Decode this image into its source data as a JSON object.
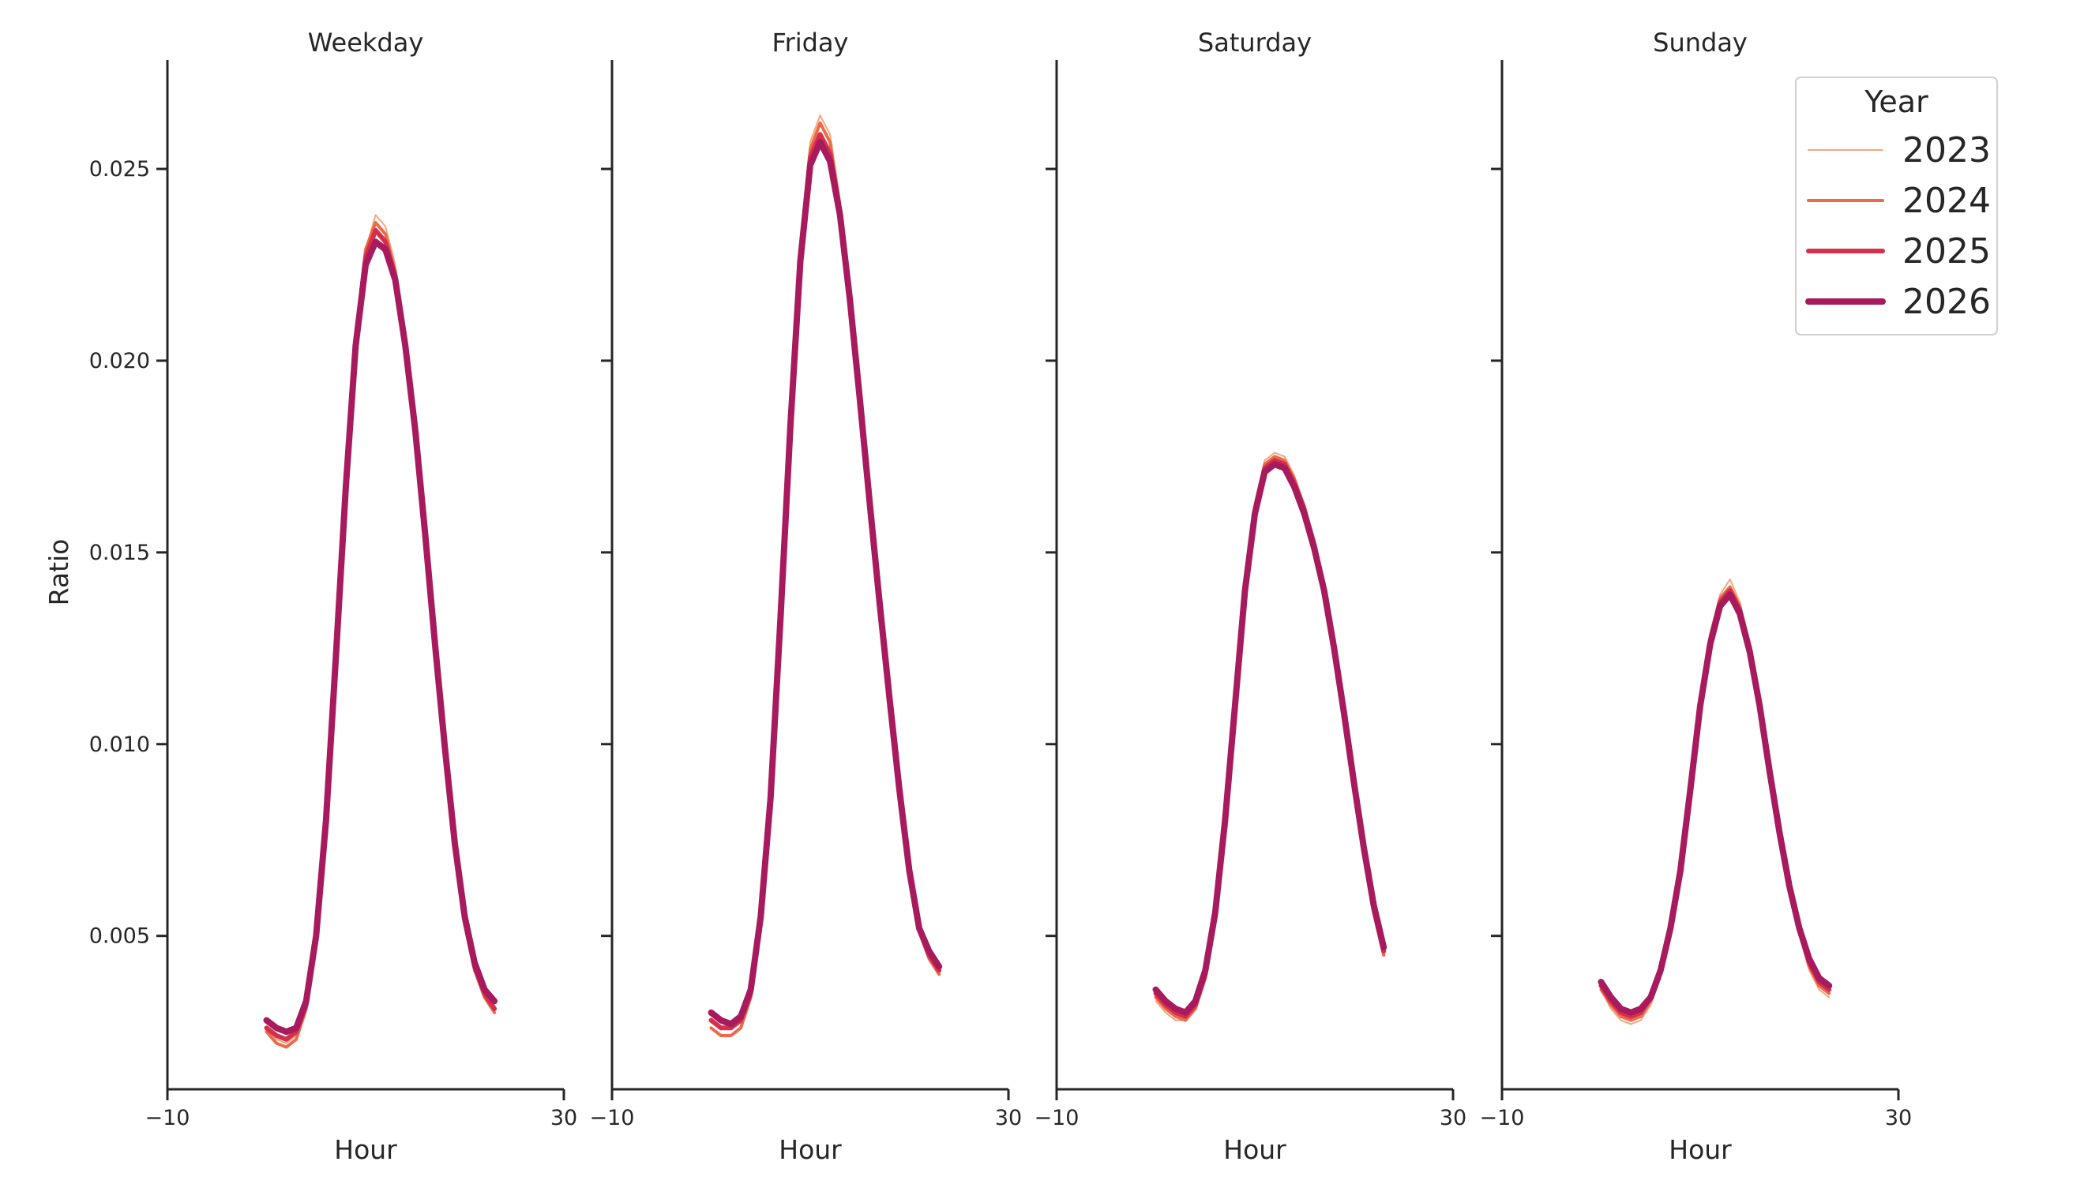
{
  "chart_data": {
    "type": "line",
    "ylabel": "Ratio",
    "xlabel": "Hour",
    "xlim": [
      -10,
      30
    ],
    "ylim": [
      0.001,
      0.0278
    ],
    "x_ticks": [
      -10,
      30
    ],
    "x_tick_labels": [
      "−10",
      "30"
    ],
    "y_ticks": [
      0.005,
      0.01,
      0.015,
      0.02,
      0.025
    ],
    "y_tick_labels": [
      "0.005",
      "0.010",
      "0.015",
      "0.020",
      "0.025"
    ],
    "grid": false,
    "legend": {
      "title": "Year",
      "placement": "top-right",
      "entries": [
        "2023",
        "2024",
        "2025",
        "2026"
      ]
    },
    "series_styles": [
      {
        "name": "2023",
        "color": "#f5a77c",
        "width": 2
      },
      {
        "name": "2024",
        "color": "#ec6a4a",
        "width": 4
      },
      {
        "name": "2025",
        "color": "#d4304b",
        "width": 6
      },
      {
        "name": "2026",
        "color": "#a71a5d",
        "width": 8
      }
    ],
    "x": [
      0,
      1,
      2,
      3,
      4,
      5,
      6,
      7,
      8,
      9,
      10,
      11,
      12,
      13,
      14,
      15,
      16,
      17,
      18,
      19,
      20,
      21,
      22,
      23
    ],
    "panels": [
      {
        "title": "Weekday",
        "series": [
          {
            "name": "2023",
            "values": [
              0.0026,
              0.0023,
              0.0022,
              0.0024,
              0.0032,
              0.005,
              0.0081,
              0.0125,
              0.017,
              0.0207,
              0.0229,
              0.0238,
              0.0235,
              0.0225,
              0.0207,
              0.0183,
              0.0155,
              0.0125,
              0.0097,
              0.0072,
              0.0053,
              0.0041,
              0.0034,
              0.003
            ]
          },
          {
            "name": "2024",
            "values": [
              0.0025,
              0.0022,
              0.0021,
              0.0023,
              0.0031,
              0.0049,
              0.008,
              0.0124,
              0.0169,
              0.0206,
              0.0229,
              0.0236,
              0.0233,
              0.0223,
              0.0206,
              0.0182,
              0.0154,
              0.0124,
              0.0097,
              0.0072,
              0.0053,
              0.0041,
              0.0034,
              0.003
            ]
          },
          {
            "name": "2025",
            "values": [
              0.0026,
              0.0024,
              0.0023,
              0.0025,
              0.0032,
              0.005,
              0.008,
              0.0124,
              0.0168,
              0.0205,
              0.0227,
              0.0234,
              0.0231,
              0.0222,
              0.0205,
              0.0182,
              0.0155,
              0.0125,
              0.0098,
              0.0073,
              0.0054,
              0.0042,
              0.0035,
              0.0031
            ]
          },
          {
            "name": "2026",
            "values": [
              0.0028,
              0.0026,
              0.0025,
              0.0026,
              0.0033,
              0.005,
              0.008,
              0.0123,
              0.0167,
              0.0204,
              0.0225,
              0.0231,
              0.0229,
              0.0221,
              0.0204,
              0.0182,
              0.0155,
              0.0126,
              0.0099,
              0.0074,
              0.0055,
              0.0043,
              0.0036,
              0.0033
            ]
          }
        ]
      },
      {
        "title": "Friday",
        "series": [
          {
            "name": "2023",
            "values": [
              0.0026,
              0.0024,
              0.0024,
              0.0026,
              0.0034,
              0.0053,
              0.0086,
              0.0135,
              0.0186,
              0.0229,
              0.0257,
              0.0264,
              0.0259,
              0.0242,
              0.0218,
              0.019,
              0.0162,
              0.0136,
              0.0111,
              0.0087,
              0.0066,
              0.0051,
              0.0044,
              0.004
            ]
          },
          {
            "name": "2024",
            "values": [
              0.0026,
              0.0024,
              0.0024,
              0.0026,
              0.0034,
              0.0053,
              0.0085,
              0.0134,
              0.0185,
              0.0228,
              0.0255,
              0.0262,
              0.0257,
              0.024,
              0.0217,
              0.019,
              0.0162,
              0.0136,
              0.0111,
              0.0087,
              0.0066,
              0.0051,
              0.0044,
              0.004
            ]
          },
          {
            "name": "2025",
            "values": [
              0.0028,
              0.0026,
              0.0026,
              0.0028,
              0.0035,
              0.0054,
              0.0085,
              0.0133,
              0.0184,
              0.0227,
              0.0253,
              0.0259,
              0.0254,
              0.0239,
              0.0216,
              0.019,
              0.0163,
              0.0137,
              0.0112,
              0.0088,
              0.0067,
              0.0052,
              0.0045,
              0.0041
            ]
          },
          {
            "name": "2026",
            "values": [
              0.003,
              0.0028,
              0.0027,
              0.0029,
              0.0036,
              0.0055,
              0.0086,
              0.0133,
              0.0183,
              0.0226,
              0.0251,
              0.0257,
              0.0252,
              0.0238,
              0.0216,
              0.019,
              0.0163,
              0.0137,
              0.0112,
              0.0088,
              0.0067,
              0.0052,
              0.0046,
              0.0042
            ]
          }
        ]
      },
      {
        "title": "Saturday",
        "series": [
          {
            "name": "2023",
            "values": [
              0.0033,
              0.003,
              0.0028,
              0.0028,
              0.0031,
              0.0039,
              0.0054,
              0.0078,
              0.011,
              0.0142,
              0.0163,
              0.0174,
              0.0176,
              0.0175,
              0.017,
              0.0162,
              0.0152,
              0.014,
              0.0125,
              0.0107,
              0.0089,
              0.0071,
              0.0056,
              0.0045
            ]
          },
          {
            "name": "2024",
            "values": [
              0.0034,
              0.0031,
              0.0029,
              0.0028,
              0.0031,
              0.0039,
              0.0054,
              0.0078,
              0.011,
              0.0141,
              0.0162,
              0.0173,
              0.0175,
              0.0174,
              0.0169,
              0.0162,
              0.0152,
              0.014,
              0.0125,
              0.0107,
              0.0089,
              0.0071,
              0.0056,
              0.0045
            ]
          },
          {
            "name": "2025",
            "values": [
              0.0035,
              0.0032,
              0.003,
              0.0029,
              0.0032,
              0.004,
              0.0055,
              0.0079,
              0.011,
              0.0141,
              0.0161,
              0.0172,
              0.0174,
              0.0173,
              0.0168,
              0.0161,
              0.0152,
              0.014,
              0.0125,
              0.0108,
              0.009,
              0.0072,
              0.0057,
              0.0046
            ]
          },
          {
            "name": "2026",
            "values": [
              0.0036,
              0.0033,
              0.0031,
              0.003,
              0.0033,
              0.0041,
              0.0056,
              0.008,
              0.011,
              0.014,
              0.016,
              0.0171,
              0.0173,
              0.0172,
              0.0167,
              0.016,
              0.0151,
              0.014,
              0.0125,
              0.0108,
              0.009,
              0.0073,
              0.0058,
              0.0047
            ]
          }
        ]
      },
      {
        "title": "Sunday",
        "series": [
          {
            "name": "2023",
            "values": [
              0.0036,
              0.0031,
              0.0028,
              0.0027,
              0.0028,
              0.0032,
              0.0039,
              0.005,
              0.0066,
              0.0088,
              0.0112,
              0.0129,
              0.0139,
              0.0143,
              0.0137,
              0.0126,
              0.0111,
              0.0094,
              0.0077,
              0.0062,
              0.005,
              0.0041,
              0.0036,
              0.0034
            ]
          },
          {
            "name": "2024",
            "values": [
              0.0036,
              0.0032,
              0.0029,
              0.0028,
              0.0029,
              0.0033,
              0.004,
              0.0051,
              0.0066,
              0.0088,
              0.0111,
              0.0128,
              0.0138,
              0.0141,
              0.0136,
              0.0125,
              0.011,
              0.0093,
              0.0077,
              0.0062,
              0.0051,
              0.0042,
              0.0037,
              0.0035
            ]
          },
          {
            "name": "2025",
            "values": [
              0.0037,
              0.0033,
              0.003,
              0.0029,
              0.003,
              0.0034,
              0.0041,
              0.0052,
              0.0067,
              0.0088,
              0.011,
              0.0127,
              0.0137,
              0.014,
              0.0135,
              0.0125,
              0.011,
              0.0093,
              0.0077,
              0.0063,
              0.0052,
              0.0043,
              0.0038,
              0.0036
            ]
          },
          {
            "name": "2026",
            "values": [
              0.0038,
              0.0034,
              0.0031,
              0.003,
              0.0031,
              0.0034,
              0.0041,
              0.0052,
              0.0067,
              0.0088,
              0.011,
              0.0126,
              0.0136,
              0.0139,
              0.0134,
              0.0124,
              0.011,
              0.0093,
              0.0077,
              0.0063,
              0.0052,
              0.0044,
              0.0039,
              0.0037
            ]
          }
        ]
      }
    ]
  }
}
